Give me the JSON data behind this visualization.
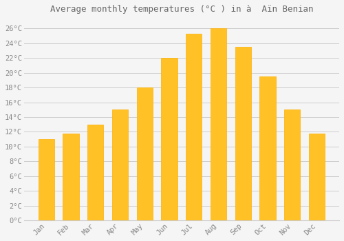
{
  "title": "Average monthly temperatures (°C ) in à  Aïn Benian",
  "months": [
    "Jan",
    "Feb",
    "Mar",
    "Apr",
    "May",
    "Jun",
    "Jul",
    "Aug",
    "Sep",
    "Oct",
    "Nov",
    "Dec"
  ],
  "temperatures": [
    11.0,
    11.8,
    13.0,
    15.0,
    18.0,
    22.0,
    25.3,
    26.0,
    23.5,
    19.5,
    15.0,
    11.8
  ],
  "bar_color_face": "#FFC125",
  "bar_color_edge": "#FFB000",
  "background_color": "#F5F5F5",
  "plot_bg_color": "#F5F5F5",
  "grid_color": "#CCCCCC",
  "title_color": "#666666",
  "tick_color": "#888888",
  "yticks": [
    0,
    2,
    4,
    6,
    8,
    10,
    12,
    14,
    16,
    18,
    20,
    22,
    24,
    26
  ],
  "ylim": [
    0,
    27.5
  ],
  "title_fontsize": 9,
  "tick_fontsize": 7.5,
  "bar_width": 0.65
}
